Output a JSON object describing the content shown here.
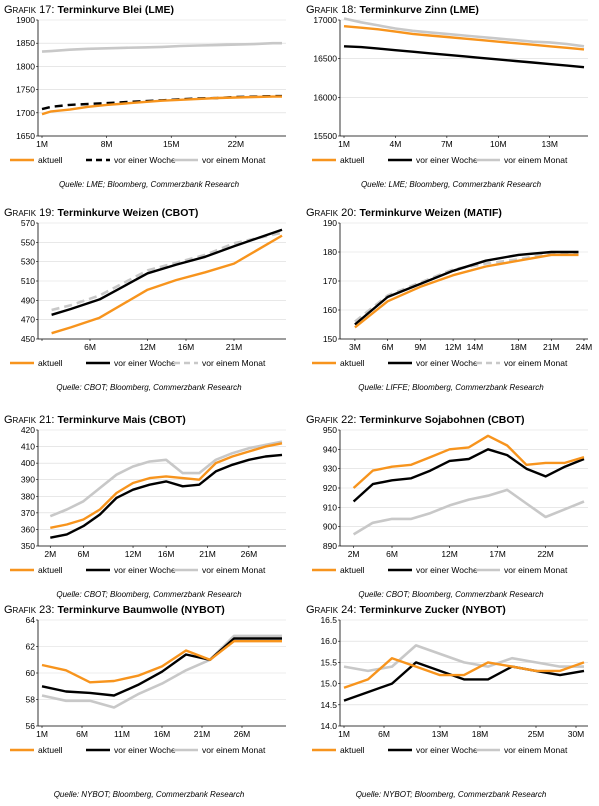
{
  "legend_labels": [
    "aktuell",
    "vor einer Woche",
    "vor einem Monat"
  ],
  "colors": {
    "aktuell": "#f7941d",
    "woche": "#000000",
    "monat": "#c8c8c8"
  },
  "chart_data": [
    {
      "type": "line",
      "grafik": "Grafik 17:",
      "title": "Terminkurve Blei (LME)",
      "source": "Quelle: LME; Bloomberg, Commerzbank Research",
      "ylim": [
        1650,
        1900
      ],
      "yticks": [
        1650,
        1700,
        1750,
        1800,
        1850,
        1900
      ],
      "xlim": [
        1,
        27
      ],
      "xticks": [
        1,
        8,
        15,
        22
      ],
      "xtick_labels": [
        "1M",
        "8M",
        "15M",
        "22M"
      ],
      "woche_dashed": true,
      "series": [
        {
          "name": "aktuell",
          "x": [
            1,
            2,
            4,
            6,
            8,
            10,
            12,
            14,
            16,
            18,
            20,
            22,
            24,
            26,
            27
          ],
          "values": [
            1697,
            1703,
            1707,
            1713,
            1717,
            1720,
            1723,
            1726,
            1728,
            1730,
            1732,
            1733,
            1734,
            1735,
            1735
          ]
        },
        {
          "name": "vor einer Woche",
          "x": [
            1,
            2,
            4,
            6,
            8,
            10,
            12,
            14,
            16,
            18,
            20,
            22,
            24,
            26,
            27
          ],
          "values": [
            1708,
            1713,
            1717,
            1719,
            1721,
            1723,
            1725,
            1727,
            1729,
            1731,
            1732,
            1734,
            1735,
            1736,
            1736
          ]
        },
        {
          "name": "vor einem Monat",
          "x": [
            1,
            2,
            4,
            6,
            8,
            10,
            12,
            14,
            16,
            18,
            20,
            22,
            24,
            26,
            27
          ],
          "values": [
            1832,
            1833,
            1836,
            1838,
            1839,
            1840,
            1841,
            1842,
            1844,
            1845,
            1846,
            1847,
            1848,
            1850,
            1850
          ]
        }
      ]
    },
    {
      "type": "line",
      "grafik": "Grafik 18:",
      "title": "Terminkurve Zinn (LME)",
      "source": "Quelle: LME; Bloomberg, Commerzbank Research",
      "ylim": [
        15500,
        17000
      ],
      "yticks": [
        15500,
        16000,
        16500,
        17000
      ],
      "xlim": [
        1,
        15
      ],
      "xticks": [
        1,
        4,
        7,
        10,
        13
      ],
      "xtick_labels": [
        "1M",
        "4M",
        "7M",
        "10M",
        "13M"
      ],
      "woche_dashed": false,
      "series": [
        {
          "name": "aktuell",
          "x": [
            1,
            2,
            3,
            4,
            5,
            6,
            7,
            8,
            9,
            10,
            11,
            12,
            13,
            14,
            15
          ],
          "values": [
            16920,
            16900,
            16880,
            16850,
            16820,
            16800,
            16780,
            16760,
            16740,
            16720,
            16700,
            16680,
            16660,
            16640,
            16620
          ]
        },
        {
          "name": "vor einer Woche",
          "x": [
            1,
            2,
            3,
            4,
            5,
            6,
            7,
            8,
            9,
            10,
            11,
            12,
            13,
            14,
            15
          ],
          "values": [
            16660,
            16650,
            16630,
            16610,
            16590,
            16570,
            16550,
            16530,
            16510,
            16490,
            16470,
            16450,
            16430,
            16410,
            16390
          ]
        },
        {
          "name": "vor einem Monat",
          "x": [
            1,
            2,
            3,
            4,
            5,
            6,
            7,
            8,
            9,
            10,
            11,
            12,
            13,
            14,
            15
          ],
          "values": [
            17020,
            16970,
            16930,
            16890,
            16860,
            16840,
            16820,
            16800,
            16780,
            16760,
            16740,
            16720,
            16710,
            16690,
            16660
          ]
        }
      ]
    },
    {
      "type": "line",
      "grafik": "Grafik 19:",
      "title": "Terminkurve Weizen (CBOT)",
      "source": "Quelle: CBOT; Bloomberg, Commerzbank Research",
      "ylim": [
        450,
        570
      ],
      "yticks": [
        450,
        470,
        490,
        510,
        530,
        550,
        570
      ],
      "xlim": [
        1,
        26
      ],
      "xticks": [
        1,
        6,
        12,
        16,
        21
      ],
      "xtick_labels": [
        "",
        "6M",
        "12M",
        "16M",
        "21M"
      ],
      "woche_dashed": false,
      "monat_dashed": true,
      "series": [
        {
          "name": "aktuell",
          "x": [
            2,
            4,
            7,
            12,
            15,
            18,
            21,
            26
          ],
          "values": [
            456,
            462,
            472,
            501,
            511,
            519,
            528,
            557
          ]
        },
        {
          "name": "vor einer Woche",
          "x": [
            2,
            4,
            7,
            12,
            15,
            18,
            21,
            26
          ],
          "values": [
            475,
            481,
            491,
            518,
            527,
            535,
            546,
            563
          ]
        },
        {
          "name": "vor einem Monat",
          "x": [
            2,
            4,
            7,
            12,
            15,
            18,
            21,
            26
          ],
          "values": [
            480,
            485,
            495,
            521,
            529,
            537,
            549,
            560
          ]
        }
      ]
    },
    {
      "type": "line",
      "grafik": "Grafik 20:",
      "title": "Terminkurve Weizen (MATIF)",
      "source": "Quelle: LIFFE; Bloomberg, Commerzbank Research",
      "ylim": [
        150,
        190
      ],
      "yticks": [
        150,
        160,
        170,
        180,
        190
      ],
      "xlim": [
        2,
        24
      ],
      "xticks": [
        3,
        6,
        9,
        12,
        14,
        18,
        21,
        24
      ],
      "xtick_labels": [
        "3M",
        "6M",
        "9M",
        "12M",
        "14M",
        "18M",
        "21M",
        "24M"
      ],
      "woche_dashed": false,
      "monat_dashed": true,
      "series": [
        {
          "name": "aktuell",
          "x": [
            3,
            6,
            9,
            12,
            15,
            18,
            21,
            23.5
          ],
          "values": [
            154,
            163,
            168,
            172,
            175,
            177,
            179,
            179
          ]
        },
        {
          "name": "vor einer Woche",
          "x": [
            3,
            6,
            9,
            12,
            15,
            18,
            21,
            23.5
          ],
          "values": [
            155,
            164.5,
            169,
            173.5,
            177,
            179,
            180,
            180
          ]
        },
        {
          "name": "vor einem Monat",
          "x": [
            3,
            6,
            9,
            12,
            15,
            18,
            21,
            23.5
          ],
          "values": [
            156,
            165,
            169.5,
            174,
            176,
            177.5,
            179.5,
            179.5
          ]
        }
      ]
    },
    {
      "type": "line",
      "grafik": "Grafik 21:",
      "title": "Terminkurve Mais (CBOT)",
      "source": "Quelle: CBOT; Bloomberg, Commerzbank Research",
      "ylim": [
        350,
        420
      ],
      "yticks": [
        350,
        360,
        370,
        380,
        390,
        400,
        410,
        420
      ],
      "xlim": [
        1,
        30
      ],
      "xticks": [
        2,
        6,
        12,
        16,
        21,
        26
      ],
      "xtick_labels": [
        "2M",
        "6M",
        "12M",
        "16M",
        "21M",
        "26M"
      ],
      "woche_dashed": false,
      "series": [
        {
          "name": "aktuell",
          "x": [
            2,
            4,
            6,
            8,
            10,
            12,
            14,
            16,
            18,
            20,
            22,
            24,
            26,
            28,
            30
          ],
          "values": [
            361,
            363,
            366,
            372,
            382,
            388,
            391,
            392,
            391,
            390,
            400,
            404,
            407,
            410,
            412
          ]
        },
        {
          "name": "vor einer Woche",
          "x": [
            2,
            4,
            6,
            8,
            10,
            12,
            14,
            16,
            18,
            20,
            22,
            24,
            26,
            28,
            30
          ],
          "values": [
            355,
            357,
            362,
            369,
            379,
            384,
            387,
            389,
            386,
            387,
            395,
            399,
            402,
            404,
            405
          ]
        },
        {
          "name": "vor einem Monat",
          "x": [
            2,
            4,
            6,
            8,
            10,
            12,
            14,
            16,
            18,
            20,
            22,
            24,
            26,
            28,
            30
          ],
          "values": [
            368,
            372,
            377,
            385,
            393,
            398,
            401,
            402,
            394,
            394,
            402,
            406,
            409,
            411,
            413
          ]
        }
      ]
    },
    {
      "type": "line",
      "grafik": "Grafik 22:",
      "title": "Terminkurve Sojabohnen (CBOT)",
      "source": "Quelle: CBOT; Bloomberg, Commerzbank Research",
      "ylim": [
        890,
        950
      ],
      "yticks": [
        890,
        900,
        910,
        920,
        930,
        940,
        950
      ],
      "xlim": [
        1,
        26
      ],
      "xticks": [
        2,
        6,
        12,
        17,
        22
      ],
      "xtick_labels": [
        "2M",
        "6M",
        "12M",
        "17M",
        "22M"
      ],
      "woche_dashed": false,
      "series": [
        {
          "name": "aktuell",
          "x": [
            2,
            4,
            6,
            8,
            10,
            12,
            14,
            16,
            18,
            20,
            22,
            24,
            26
          ],
          "values": [
            920,
            929,
            931,
            932,
            936,
            940,
            941,
            947,
            942,
            932,
            933,
            933,
            936
          ]
        },
        {
          "name": "vor einer Woche",
          "x": [
            2,
            4,
            6,
            8,
            10,
            12,
            14,
            16,
            18,
            20,
            22,
            24,
            26
          ],
          "values": [
            913,
            922,
            924,
            925,
            929,
            934,
            935,
            940,
            937,
            930,
            926,
            931,
            935
          ]
        },
        {
          "name": "vor einem Monat",
          "x": [
            2,
            4,
            6,
            8,
            10,
            12,
            14,
            16,
            18,
            20,
            22,
            24,
            26
          ],
          "values": [
            896,
            902,
            904,
            904,
            907,
            911,
            914,
            916,
            919,
            912,
            905,
            909,
            913
          ]
        }
      ]
    },
    {
      "type": "line",
      "grafik": "Grafik 23:",
      "title": "Terminkurve Baumwolle (NYBOT)",
      "source": "Quelle: NYBOT; Bloomberg, Commerzbank Research",
      "ylim": [
        56,
        64
      ],
      "yticks": [
        56,
        58,
        60,
        62,
        64
      ],
      "xlim": [
        1,
        31
      ],
      "xticks": [
        1,
        6,
        11,
        16,
        21,
        26
      ],
      "xtick_labels": [
        "1M",
        "6M",
        "11M",
        "16M",
        "21M",
        "26M"
      ],
      "woche_dashed": false,
      "series": [
        {
          "name": "aktuell",
          "x": [
            1,
            4,
            7,
            10,
            13,
            16,
            19,
            22,
            25,
            28,
            31
          ],
          "values": [
            60.6,
            60.2,
            59.3,
            59.4,
            59.8,
            60.5,
            61.7,
            61.0,
            62.4,
            62.4,
            62.4
          ]
        },
        {
          "name": "vor einer Woche",
          "x": [
            1,
            4,
            7,
            10,
            13,
            16,
            19,
            22,
            25,
            28,
            31
          ],
          "values": [
            59.0,
            58.6,
            58.5,
            58.3,
            59.1,
            60.1,
            61.4,
            61.0,
            62.6,
            62.6,
            62.6
          ]
        },
        {
          "name": "vor einem Monat",
          "x": [
            1,
            4,
            7,
            10,
            13,
            16,
            19,
            22,
            25,
            28,
            31
          ],
          "values": [
            58.3,
            57.9,
            57.9,
            57.4,
            58.4,
            59.2,
            60.2,
            61.0,
            62.8,
            62.8,
            62.8
          ]
        }
      ]
    },
    {
      "type": "line",
      "grafik": "Grafik 24:",
      "title": "Terminkurve Zucker (NYBOT)",
      "source": "Quelle: NYBOT; Bloomberg, Commerzbank Research",
      "ylim": [
        14.0,
        16.5
      ],
      "yticks": [
        14.0,
        14.5,
        15.0,
        15.5,
        16.0,
        16.5
      ],
      "ytick_decimals": 1,
      "xlim": [
        1,
        31
      ],
      "xticks": [
        1,
        6,
        13,
        18,
        25,
        30
      ],
      "xtick_labels": [
        "1M",
        "6M",
        "13M",
        "18M",
        "25M",
        "30M"
      ],
      "woche_dashed": false,
      "series": [
        {
          "name": "aktuell",
          "x": [
            1,
            4,
            7,
            10,
            13,
            16,
            19,
            22,
            25,
            28,
            31
          ],
          "values": [
            14.9,
            15.1,
            15.6,
            15.4,
            15.2,
            15.2,
            15.5,
            15.4,
            15.3,
            15.3,
            15.5
          ]
        },
        {
          "name": "vor einer Woche",
          "x": [
            1,
            4,
            7,
            10,
            13,
            16,
            19,
            22,
            25,
            28,
            31
          ],
          "values": [
            14.6,
            14.8,
            15.0,
            15.5,
            15.3,
            15.1,
            15.1,
            15.4,
            15.3,
            15.2,
            15.3
          ]
        },
        {
          "name": "vor einem Monat",
          "x": [
            1,
            4,
            7,
            10,
            13,
            16,
            19,
            22,
            25,
            28,
            31
          ],
          "values": [
            15.4,
            15.3,
            15.4,
            15.9,
            15.7,
            15.5,
            15.4,
            15.6,
            15.5,
            15.4,
            15.4
          ]
        }
      ]
    }
  ]
}
